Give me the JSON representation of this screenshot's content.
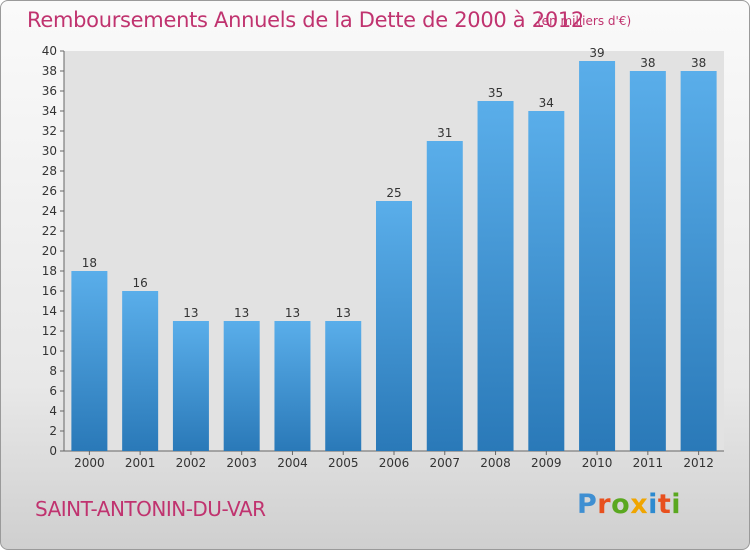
{
  "header": {
    "title": "Remboursements Annuels de la Dette de 2000 à 2012",
    "subtitle": "(en milliers d'€)"
  },
  "footer": {
    "city": "SAINT-ANTONIN-DU-VAR",
    "logo_text": "Proxiti"
  },
  "colors": {
    "title": "#c0336f",
    "bar_top": "#5aaeea",
    "bar_bottom": "#2a79b8",
    "logo": [
      "#3f8fd2",
      "#e8501e",
      "#5aa820",
      "#f0a500",
      "#2c8ad0",
      "#e8501e",
      "#5aa820"
    ]
  },
  "chart_data": {
    "type": "bar",
    "categories": [
      "2000",
      "2001",
      "2002",
      "2003",
      "2004",
      "2005",
      "2006",
      "2007",
      "2008",
      "2009",
      "2010",
      "2011",
      "2012"
    ],
    "values": [
      18,
      16,
      13,
      13,
      13,
      13,
      25,
      31,
      35,
      34,
      39,
      38,
      38
    ],
    "ylim": [
      0,
      40
    ],
    "yticks": [
      0,
      2,
      4,
      6,
      8,
      10,
      12,
      14,
      16,
      18,
      20,
      22,
      24,
      26,
      28,
      30,
      32,
      34,
      36,
      38,
      40
    ],
    "grid": false,
    "data_labels": true
  }
}
